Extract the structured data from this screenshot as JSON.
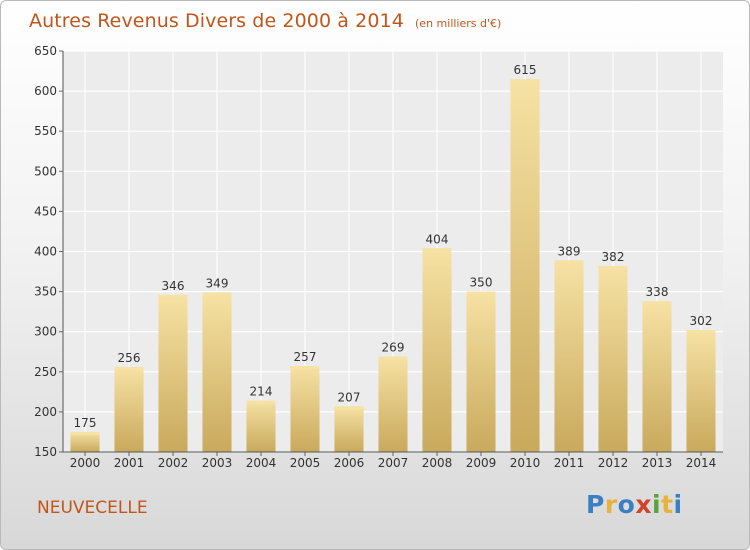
{
  "header": {
    "title": "Autres Revenus Divers de 2000 à 2014",
    "subtitle": "(en milliers d'€)"
  },
  "footer": {
    "commune": "NEUVECELLE",
    "logo_text": "Proxiti",
    "logo_colors": [
      "#3a7fc4",
      "#e8b33a",
      "#3a7fc4",
      "#d2432a",
      "#5aa33a",
      "#e8b33a",
      "#3a7fc4"
    ]
  },
  "chart_data": {
    "type": "bar",
    "categories": [
      "2000",
      "2001",
      "2002",
      "2003",
      "2004",
      "2005",
      "2006",
      "2007",
      "2008",
      "2009",
      "2010",
      "2011",
      "2012",
      "2013",
      "2014"
    ],
    "values": [
      175,
      256,
      346,
      349,
      214,
      257,
      207,
      269,
      404,
      350,
      615,
      389,
      382,
      338,
      302
    ],
    "ylim": [
      150,
      650
    ],
    "yticks": [
      150,
      200,
      250,
      300,
      350,
      400,
      450,
      500,
      550,
      600,
      650
    ],
    "grid": true,
    "bar_color": "#e3c57c",
    "bar_highlight": "#f6e2a4",
    "bar_shadow": "#c9a95c"
  }
}
